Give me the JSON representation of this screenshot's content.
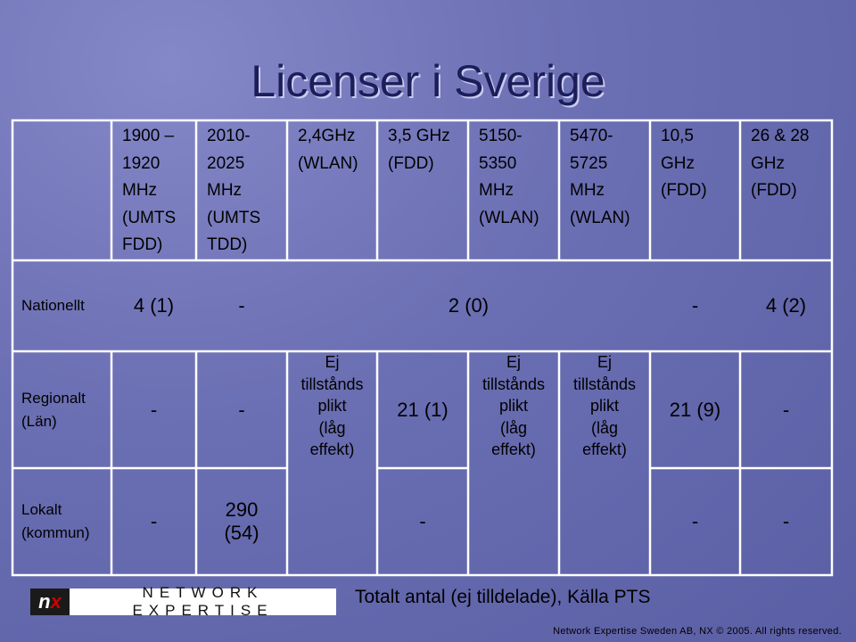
{
  "title": "Licenser i Sverige",
  "table": {
    "header": [
      "1900 –\n1920 MHz\n(UMTS FDD)",
      "2010-\n2025\nMHz\n(UMTS\nTDD)",
      "2,4GHz\n(WLAN)",
      "3,5 GHz\n(FDD)",
      "5150-\n5350\nMHz\n(WLAN)",
      "5470-\n5725\nMHz\n(WLAN)",
      "10,5\nGHz\n(FDD)",
      "26 & 28\nGHz\n(FDD)"
    ],
    "rows": [
      {
        "label": "Nationellt",
        "cells": [
          "4 (1)",
          "-",
          "2 (0)",
          "-",
          "4 (2)"
        ]
      },
      {
        "label": "Regionalt\n(Län)",
        "cells": [
          "-",
          "-",
          "Ej\ntillstånds\nplikt\n(låg\neffekt)",
          "21 (1)",
          "Ej\ntillstånds\nplikt\n(låg\neffekt)",
          "Ej\ntillstånds\nplikt\n(låg\neffekt)",
          "21 (9)",
          "-"
        ]
      },
      {
        "label": "Lokalt\n(kommun)",
        "cells": [
          "-",
          "290\n(54)",
          "-",
          "-",
          "-"
        ]
      }
    ]
  },
  "footer": {
    "logo": "NETWORK EXPERTISE",
    "source": "Totalt antal (ej tilldelade), Källa PTS",
    "copyright": "Network Expertise Sweden AB, NX © 2005. All rights reserved."
  }
}
